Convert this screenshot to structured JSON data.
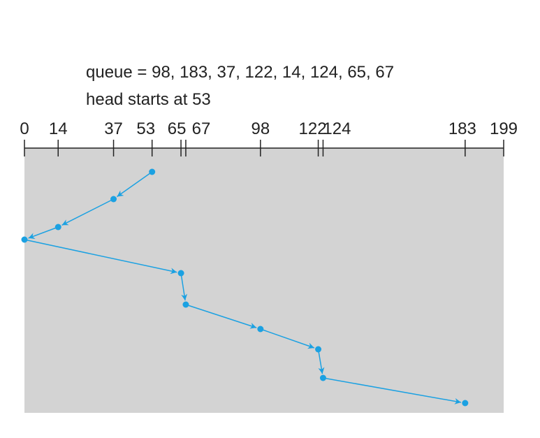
{
  "queue_text": "queue = 98, 183, 37, 122, 14, 124, 65, 67",
  "head_text": "head starts at 53",
  "axis": {
    "range": [
      0,
      199
    ],
    "ticks": [
      0,
      14,
      37,
      53,
      65,
      67,
      98,
      122,
      124,
      183,
      199
    ]
  },
  "path": [
    53,
    37,
    14,
    0,
    65,
    67,
    98,
    122,
    124,
    183
  ],
  "color": "#1ba1e2"
}
